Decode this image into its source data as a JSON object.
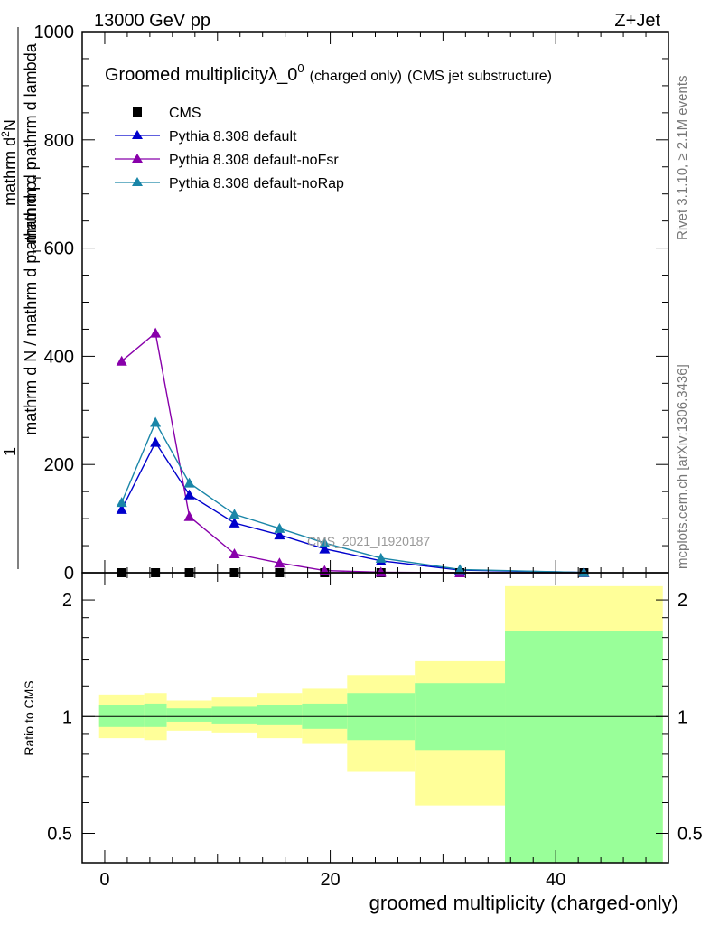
{
  "header": {
    "left": "13000 GeV pp",
    "right": "Z+Jet"
  },
  "title": {
    "main": "Groomed multiplicity",
    "lambda": "λ_0",
    "superscript": "0",
    "charged": "(charged only)",
    "analysis": "(CMS jet substructure)"
  },
  "side_labels": {
    "rivet": "Rivet 3.1.10, ≥ 2.1M events",
    "mcplots": "mcplots.cern.ch [arXiv:1306.3436]"
  },
  "watermark": "CMS_2021_I1920187",
  "ylabel_top": {
    "numerator_1": "1",
    "denominator": "mathrm d N / mathrm d p",
    "denominator_sub": "T",
    "denominator_rest": " mathrm d p",
    "numerator_dn": "mathrm d",
    "numerator_dn_sup": "2",
    "numerator_n": "N",
    "numerator_rest": "mathrm d p",
    "numerator_rest_sub": "T",
    "numerator_rest2": " mathrm d lambda"
  },
  "ylabel_bottom": "Ratio to CMS",
  "xlabel": "groomed multiplicity (charged-only)",
  "colors": {
    "cms": "#000000",
    "default": "#0000cc",
    "noFsr": "#8800aa",
    "noRap": "#1a86a8",
    "band_inner": "#99ff99",
    "band_outer": "#ffff99"
  },
  "chart_data": {
    "type": "line",
    "x_axis": {
      "min": -2,
      "max": 50,
      "ticks": [
        0,
        20,
        40
      ],
      "tick_labels": [
        "0",
        "20",
        "40"
      ]
    },
    "top_panel": {
      "ylim": [
        0,
        1000
      ],
      "ticks": [
        0,
        200,
        400,
        600,
        800,
        1000
      ],
      "tick_labels": [
        "0",
        "200",
        "400",
        "600",
        "800",
        "1000"
      ],
      "legend_position": "top-left",
      "series": [
        {
          "name": "CMS",
          "marker": "square",
          "x": [
            1.5,
            4.5,
            7.5,
            11.5,
            15.5,
            19.5,
            24.5,
            31.5,
            42.5
          ],
          "y": [
            0,
            0,
            0,
            0,
            0,
            0,
            0,
            0,
            0
          ]
        },
        {
          "name": "Pythia 8.308 default",
          "marker": "triangle",
          "x": [
            1.5,
            4.5,
            7.5,
            11.5,
            15.5,
            19.5,
            24.5,
            31.5,
            42.5
          ],
          "y": [
            117,
            241,
            144,
            92,
            70,
            44,
            22,
            5,
            0.5
          ]
        },
        {
          "name": "Pythia 8.308 default-noFsr",
          "marker": "triangle",
          "x": [
            1.5,
            4.5,
            7.5,
            11.5,
            15.5,
            19.5,
            24.5,
            31.5,
            42.5
          ],
          "y": [
            391,
            443,
            104,
            35,
            18,
            4,
            1,
            0,
            0
          ]
        },
        {
          "name": "Pythia 8.308 default-noRap",
          "marker": "triangle",
          "x": [
            1.5,
            4.5,
            7.5,
            11.5,
            15.5,
            19.5,
            24.5,
            31.5,
            42.5
          ],
          "y": [
            130,
            278,
            166,
            108,
            82,
            55,
            27,
            6,
            0.5
          ]
        }
      ]
    },
    "ratio_panel": {
      "ylim": [
        0.42,
        2.35
      ],
      "log_scale": true,
      "ticks": [
        0.5,
        1,
        2
      ],
      "tick_labels": [
        "0.5",
        "1",
        "2"
      ],
      "reference_line": 1,
      "bins": [
        {
          "lo": -0.5,
          "hi": 3.5,
          "inner": [
            0.94,
            1.07
          ],
          "outer": [
            0.88,
            1.14
          ]
        },
        {
          "lo": 3.5,
          "hi": 5.5,
          "inner": [
            0.94,
            1.08
          ],
          "outer": [
            0.87,
            1.15
          ]
        },
        {
          "lo": 5.5,
          "hi": 9.5,
          "inner": [
            0.97,
            1.05
          ],
          "outer": [
            0.92,
            1.1
          ]
        },
        {
          "lo": 9.5,
          "hi": 13.5,
          "inner": [
            0.96,
            1.06
          ],
          "outer": [
            0.91,
            1.12
          ]
        },
        {
          "lo": 13.5,
          "hi": 17.5,
          "inner": [
            0.95,
            1.07
          ],
          "outer": [
            0.88,
            1.15
          ]
        },
        {
          "lo": 17.5,
          "hi": 21.5,
          "inner": [
            0.93,
            1.08
          ],
          "outer": [
            0.85,
            1.18
          ]
        },
        {
          "lo": 21.5,
          "hi": 27.5,
          "inner": [
            0.87,
            1.15
          ],
          "outer": [
            0.72,
            1.28
          ]
        },
        {
          "lo": 27.5,
          "hi": 35.5,
          "inner": [
            0.82,
            1.22
          ],
          "outer": [
            0.59,
            1.39
          ]
        },
        {
          "lo": 35.5,
          "hi": 49.5,
          "inner": [
            0.42,
            1.66
          ],
          "outer": [
            0.42,
            2.17
          ]
        }
      ]
    }
  }
}
